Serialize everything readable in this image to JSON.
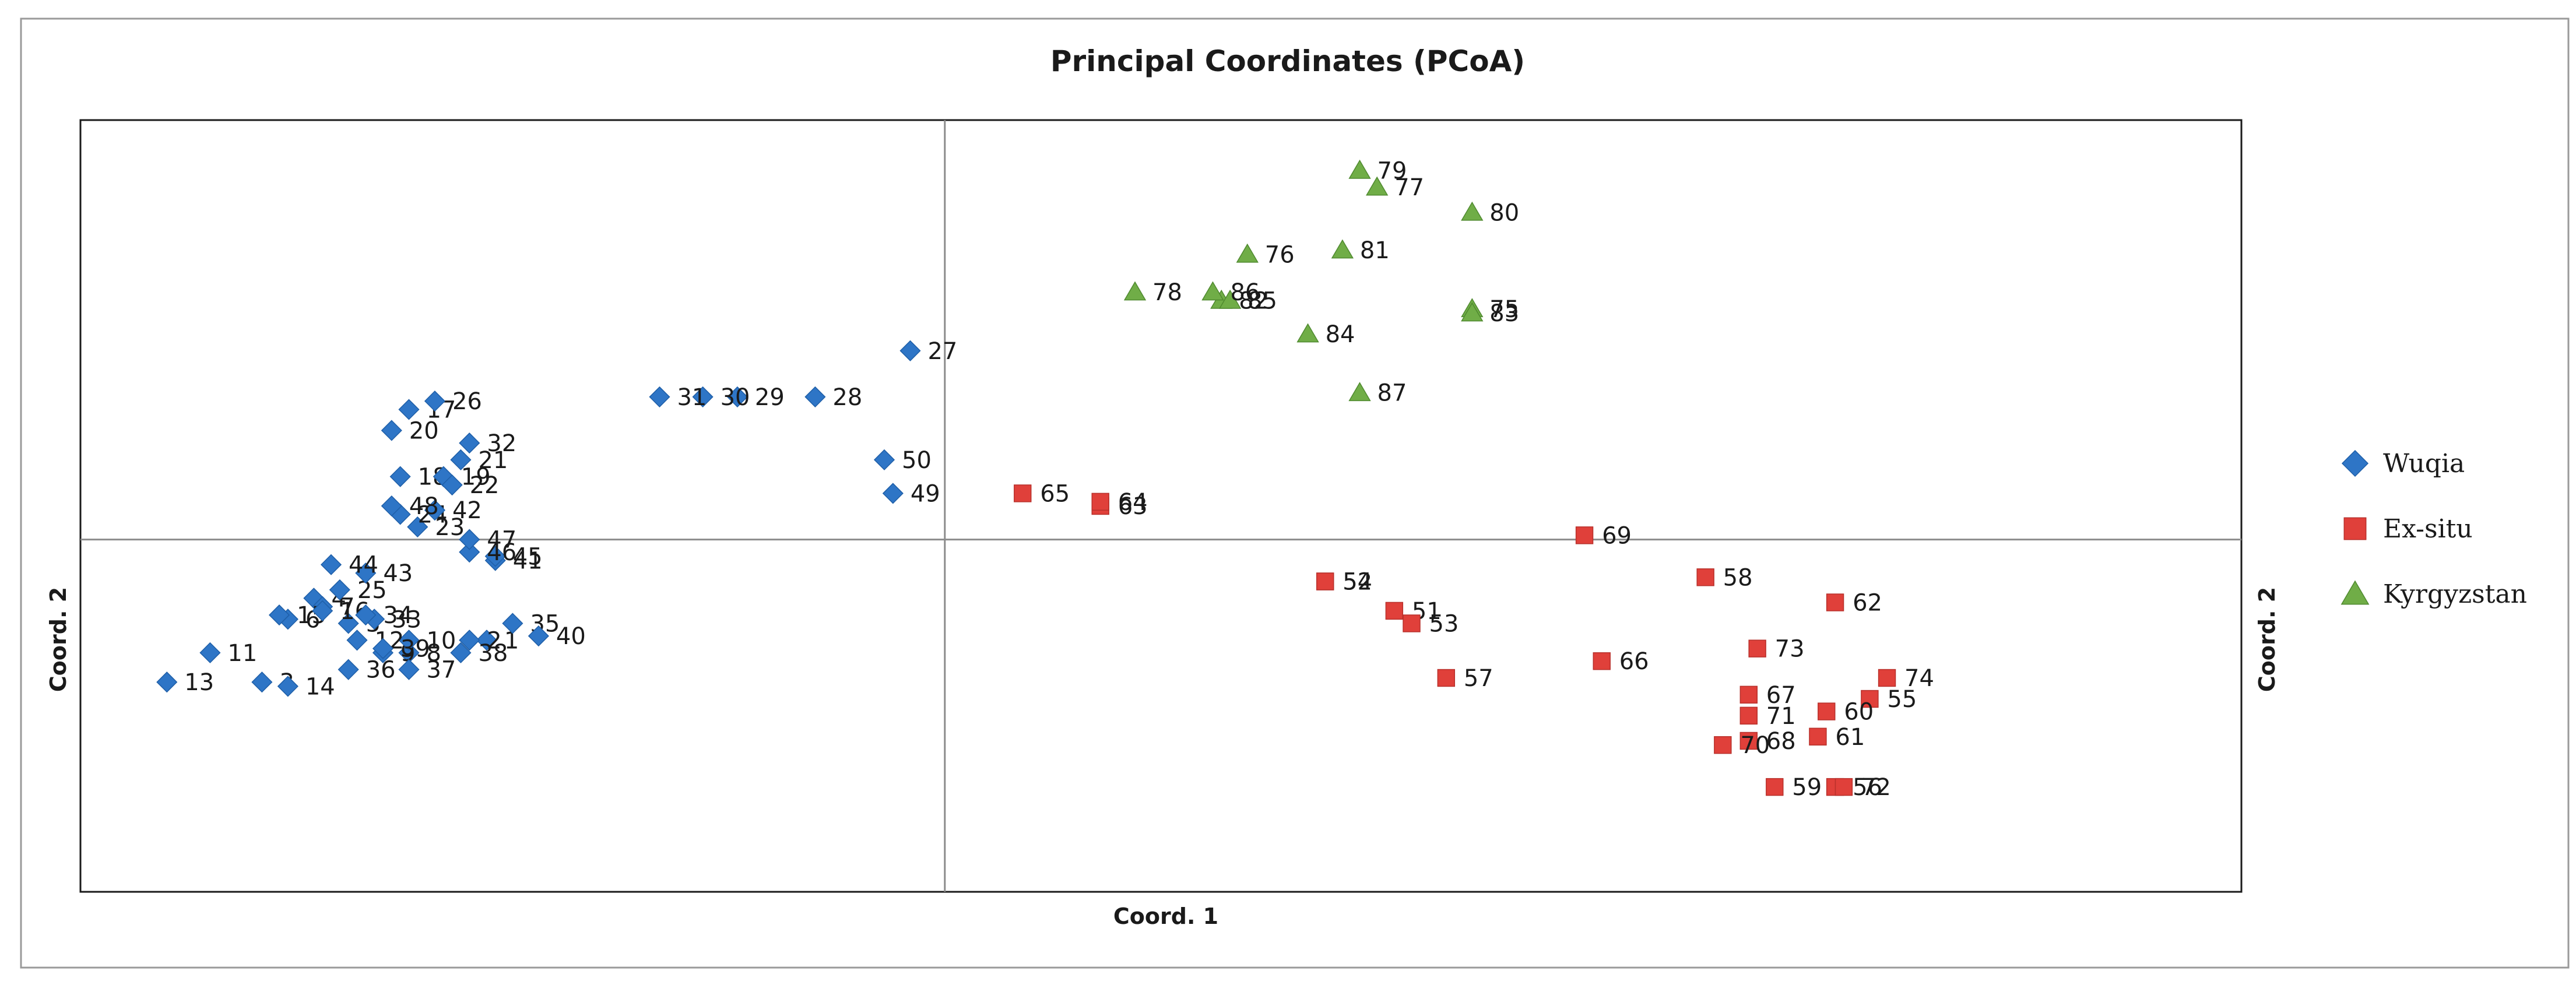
{
  "chart_data": {
    "type": "scatter",
    "title": "Principal Coordinates (PCoA)",
    "xlabel": "Coord. 1",
    "ylabel": "Coord. 2",
    "ylabel_right": "Coord. 2",
    "xlim": [
      -1.0,
      1.5
    ],
    "ylim": [
      -0.84,
      1.0
    ],
    "grid": false,
    "legend_position": "right",
    "series": [
      {
        "name": "Wuqia",
        "marker": "diamond",
        "color": "#2E75C6",
        "points": [
          {
            "label": "1",
            "x": -0.53,
            "y": -0.24
          },
          {
            "label": "2",
            "x": -0.55,
            "y": -0.24
          },
          {
            "label": "3",
            "x": -0.79,
            "y": -0.34
          },
          {
            "label": "4",
            "x": -0.73,
            "y": -0.14
          },
          {
            "label": "5",
            "x": -0.69,
            "y": -0.2
          },
          {
            "label": "6",
            "x": -0.76,
            "y": -0.19
          },
          {
            "label": "7",
            "x": -0.72,
            "y": -0.16
          },
          {
            "label": "8",
            "x": -0.62,
            "y": -0.27
          },
          {
            "label": "9",
            "x": -0.65,
            "y": -0.27
          },
          {
            "label": "10",
            "x": -0.62,
            "y": -0.24
          },
          {
            "label": "11",
            "x": -0.85,
            "y": -0.27
          },
          {
            "label": "12",
            "x": -0.68,
            "y": -0.24
          },
          {
            "label": "13",
            "x": -0.9,
            "y": -0.34
          },
          {
            "label": "14",
            "x": -0.76,
            "y": -0.35
          },
          {
            "label": "15",
            "x": -0.77,
            "y": -0.18
          },
          {
            "label": "16",
            "x": -0.72,
            "y": -0.17
          },
          {
            "label": "17",
            "x": -0.62,
            "y": 0.31
          },
          {
            "label": "18",
            "x": -0.63,
            "y": 0.15
          },
          {
            "label": "19",
            "x": -0.58,
            "y": 0.15
          },
          {
            "label": "20",
            "x": -0.64,
            "y": 0.26
          },
          {
            "label": "21",
            "x": -0.56,
            "y": 0.19
          },
          {
            "label": "22",
            "x": -0.57,
            "y": 0.13
          },
          {
            "label": "23",
            "x": -0.61,
            "y": 0.03
          },
          {
            "label": "24",
            "x": -0.63,
            "y": 0.06
          },
          {
            "label": "25",
            "x": -0.7,
            "y": -0.12
          },
          {
            "label": "26",
            "x": -0.59,
            "y": 0.33
          },
          {
            "label": "27",
            "x": -0.04,
            "y": 0.45
          },
          {
            "label": "28",
            "x": -0.15,
            "y": 0.34
          },
          {
            "label": "29",
            "x": -0.24,
            "y": 0.34
          },
          {
            "label": "30",
            "x": -0.28,
            "y": 0.34
          },
          {
            "label": "31",
            "x": -0.33,
            "y": 0.34
          },
          {
            "label": "32",
            "x": -0.55,
            "y": 0.23
          },
          {
            "label": "33",
            "x": -0.66,
            "y": -0.19
          },
          {
            "label": "34",
            "x": -0.67,
            "y": -0.18
          },
          {
            "label": "35",
            "x": -0.5,
            "y": -0.2
          },
          {
            "label": "36",
            "x": -0.69,
            "y": -0.31
          },
          {
            "label": "37",
            "x": -0.62,
            "y": -0.31
          },
          {
            "label": "38",
            "x": -0.56,
            "y": -0.27
          },
          {
            "label": "39",
            "x": -0.65,
            "y": -0.26
          },
          {
            "label": "40",
            "x": -0.47,
            "y": -0.23
          },
          {
            "label": "41",
            "x": -0.52,
            "y": -0.05
          },
          {
            "label": "42",
            "x": -0.59,
            "y": 0.07
          },
          {
            "label": "43",
            "x": -0.67,
            "y": -0.08
          },
          {
            "label": "44",
            "x": -0.71,
            "y": -0.06
          },
          {
            "label": "45",
            "x": -0.52,
            "y": -0.04
          },
          {
            "label": "46",
            "x": -0.55,
            "y": -0.03
          },
          {
            "label": "47",
            "x": -0.55,
            "y": 0.0
          },
          {
            "label": "48",
            "x": -0.64,
            "y": 0.08
          },
          {
            "label": "49",
            "x": -0.06,
            "y": 0.11
          },
          {
            "label": "50",
            "x": -0.07,
            "y": 0.19
          }
        ]
      },
      {
        "name": "Ex-situ",
        "marker": "square",
        "color": "#E0403A",
        "points": [
          {
            "label": "51",
            "x": 0.52,
            "y": -0.17
          },
          {
            "label": "52",
            "x": 0.44,
            "y": -0.1
          },
          {
            "label": "53",
            "x": 0.54,
            "y": -0.2
          },
          {
            "label": "54",
            "x": 0.44,
            "y": -0.1
          },
          {
            "label": "55",
            "x": 1.07,
            "y": -0.38
          },
          {
            "label": "56",
            "x": 1.03,
            "y": -0.59
          },
          {
            "label": "57",
            "x": 0.58,
            "y": -0.33
          },
          {
            "label": "58",
            "x": 0.88,
            "y": -0.09
          },
          {
            "label": "59",
            "x": 0.96,
            "y": -0.59
          },
          {
            "label": "60",
            "x": 1.02,
            "y": -0.41
          },
          {
            "label": "61",
            "x": 1.01,
            "y": -0.47
          },
          {
            "label": "62",
            "x": 1.03,
            "y": -0.15
          },
          {
            "label": "63",
            "x": 0.18,
            "y": 0.08
          },
          {
            "label": "64",
            "x": 0.18,
            "y": 0.09
          },
          {
            "label": "65",
            "x": 0.09,
            "y": 0.11
          },
          {
            "label": "66",
            "x": 0.76,
            "y": -0.29
          },
          {
            "label": "67",
            "x": 0.93,
            "y": -0.37
          },
          {
            "label": "68",
            "x": 0.93,
            "y": -0.48
          },
          {
            "label": "69",
            "x": 0.74,
            "y": 0.01
          },
          {
            "label": "70",
            "x": 0.9,
            "y": -0.49
          },
          {
            "label": "71",
            "x": 0.93,
            "y": -0.42
          },
          {
            "label": "72",
            "x": 1.04,
            "y": -0.59
          },
          {
            "label": "73",
            "x": 0.94,
            "y": -0.26
          },
          {
            "label": "74",
            "x": 1.09,
            "y": -0.33
          }
        ]
      },
      {
        "name": "Kyrgyzstan",
        "marker": "triangle",
        "color": "#70AD47",
        "points": [
          {
            "label": "75",
            "x": 0.61,
            "y": 0.55
          },
          {
            "label": "76",
            "x": 0.35,
            "y": 0.68
          },
          {
            "label": "77",
            "x": 0.5,
            "y": 0.84
          },
          {
            "label": "78",
            "x": 0.22,
            "y": 0.59
          },
          {
            "label": "79",
            "x": 0.48,
            "y": 0.88
          },
          {
            "label": "80",
            "x": 0.61,
            "y": 0.78
          },
          {
            "label": "81",
            "x": 0.46,
            "y": 0.69
          },
          {
            "label": "82",
            "x": 0.32,
            "y": 0.57
          },
          {
            "label": "83",
            "x": 0.61,
            "y": 0.54
          },
          {
            "label": "84",
            "x": 0.42,
            "y": 0.49
          },
          {
            "label": "85",
            "x": 0.33,
            "y": 0.57
          },
          {
            "label": "86",
            "x": 0.31,
            "y": 0.59
          },
          {
            "label": "87",
            "x": 0.48,
            "y": 0.35
          }
        ]
      }
    ]
  }
}
